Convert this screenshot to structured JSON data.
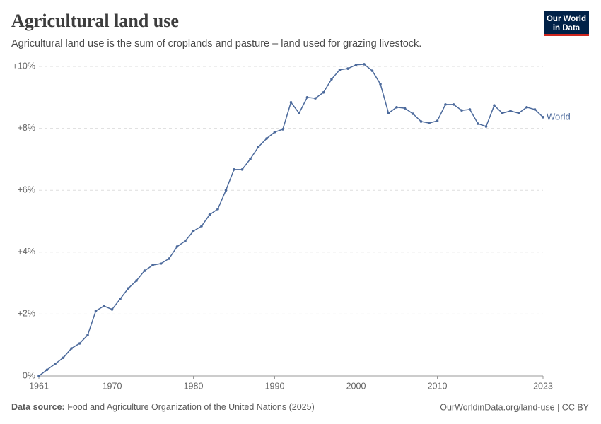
{
  "chart_data": {
    "type": "line",
    "title": "Agricultural land use",
    "subtitle": "Agricultural land use is the sum of croplands and pasture – land used for grazing livestock.",
    "logo": [
      "Our World",
      "in Data"
    ],
    "source": {
      "label": "Data source:",
      "text": "Food and Agriculture Organization of the United Nations (2025)"
    },
    "footer_right": "OurWorldinData.org/land-use | CC BY",
    "x": [
      1961,
      1962,
      1963,
      1964,
      1965,
      1966,
      1967,
      1968,
      1969,
      1970,
      1971,
      1972,
      1973,
      1974,
      1975,
      1976,
      1977,
      1978,
      1979,
      1980,
      1981,
      1982,
      1983,
      1984,
      1985,
      1986,
      1987,
      1988,
      1989,
      1990,
      1991,
      1992,
      1993,
      1994,
      1995,
      1996,
      1997,
      1998,
      1999,
      2000,
      2001,
      2002,
      2003,
      2004,
      2005,
      2006,
      2007,
      2008,
      2009,
      2010,
      2011,
      2012,
      2013,
      2014,
      2015,
      2016,
      2017,
      2018,
      2019,
      2020,
      2021,
      2022,
      2023
    ],
    "series": [
      {
        "name": "World",
        "color": "#4c6a9c",
        "values": [
          0,
          0.2,
          0.39,
          0.59,
          0.89,
          1.05,
          1.32,
          2.1,
          2.26,
          2.15,
          2.49,
          2.83,
          3.08,
          3.4,
          3.58,
          3.63,
          3.79,
          4.18,
          4.36,
          4.68,
          4.84,
          5.21,
          5.39,
          6.0,
          6.67,
          6.67,
          7.01,
          7.4,
          7.67,
          7.88,
          7.97,
          8.84,
          8.49,
          9.0,
          8.97,
          9.16,
          9.59,
          9.89,
          9.93,
          10.05,
          10.07,
          9.86,
          9.43,
          8.49,
          8.68,
          8.65,
          8.47,
          8.22,
          8.17,
          8.24,
          8.77,
          8.77,
          8.58,
          8.61,
          8.15,
          8.06,
          8.74,
          8.49,
          8.56,
          8.49,
          8.68,
          8.61,
          8.36
        ]
      }
    ],
    "xlim": [
      1961,
      2023
    ],
    "xticks": [
      1961,
      1970,
      1980,
      1990,
      2000,
      2010,
      2023
    ],
    "ylim": [
      0,
      10
    ],
    "yticks": [
      {
        "value": 0,
        "label": "0%"
      },
      {
        "value": 2,
        "label": "+2%"
      },
      {
        "value": 4,
        "label": "+4%"
      },
      {
        "value": 6,
        "label": "+6%"
      },
      {
        "value": 8,
        "label": "+8%"
      },
      {
        "value": 10,
        "label": "+10%"
      }
    ],
    "grid": true
  }
}
